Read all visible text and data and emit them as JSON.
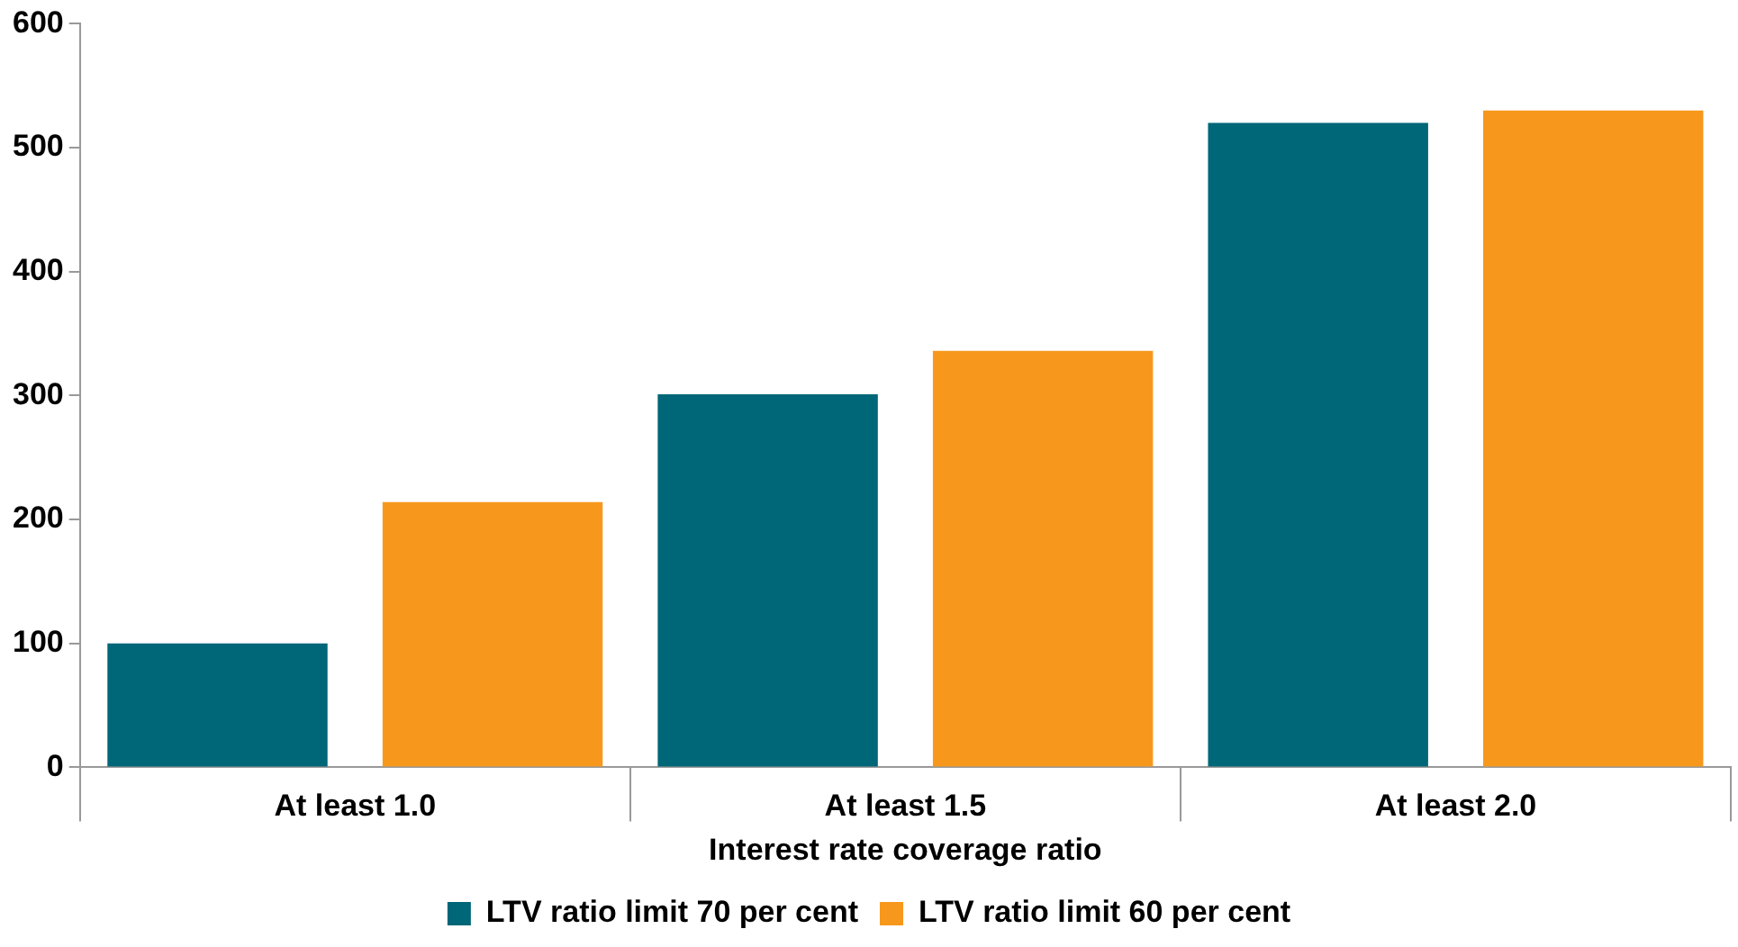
{
  "chart_data": {
    "type": "bar",
    "xlabel": "Interest rate coverage ratio",
    "categories": [
      "At least 1.0",
      "At least 1.5",
      "At least 2.0"
    ],
    "series": [
      {
        "name": "LTV ratio limit 70 per cent",
        "color": "#006778",
        "values": [
          100,
          301,
          520
        ]
      },
      {
        "name": "LTV ratio limit 60 per cent",
        "color": "#f7981d",
        "values": [
          214,
          336,
          530
        ]
      }
    ],
    "ylim": [
      0,
      600
    ],
    "yticks": [
      0,
      100,
      200,
      300,
      400,
      500,
      600
    ],
    "grid": false,
    "legend": "bottom"
  }
}
